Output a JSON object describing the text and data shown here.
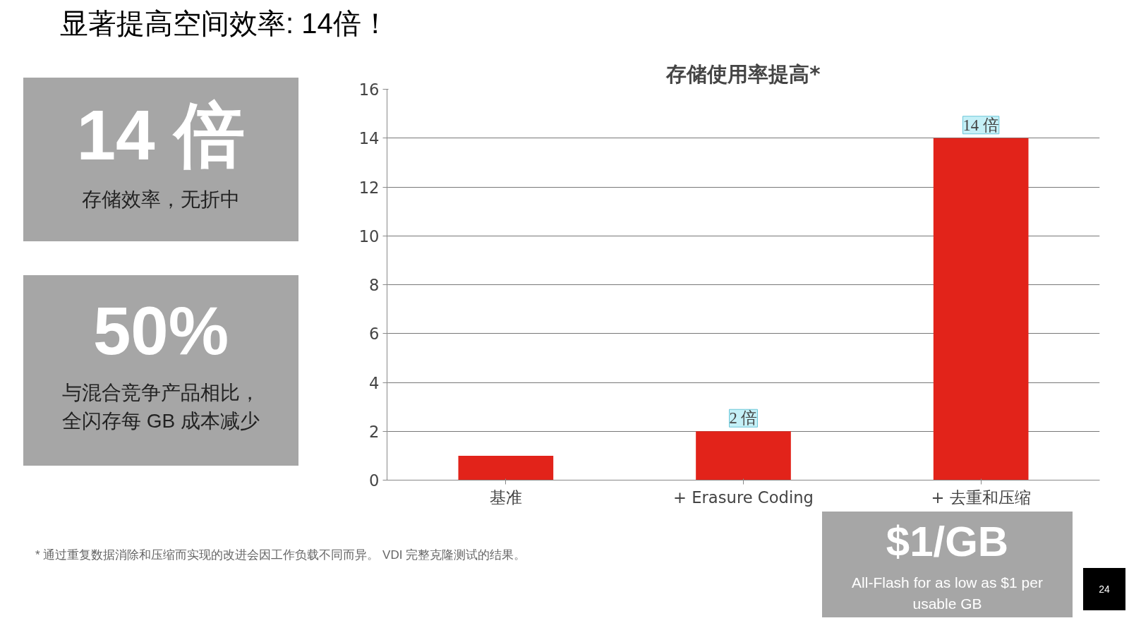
{
  "chart_data": {
    "type": "bar",
    "title": "存储使用率提高*",
    "categories": [
      "基准",
      "+ Erasure Coding",
      "+ 去重和压缩"
    ],
    "values": [
      1,
      2,
      14
    ],
    "color": "#e2231a",
    "value_labels": [
      null,
      "2 倍",
      "14 倍"
    ],
    "ylim": [
      0,
      16
    ],
    "yticks": [
      0,
      2,
      4,
      6,
      8,
      10,
      12,
      14,
      16
    ],
    "grid": "y",
    "annotations": [
      "显著提高空间效率: 14倍！",
      "14 倍",
      "存储效率，无折中",
      "50%",
      "与混合竞争产品相比，",
      "全闪存每  GB 成本减少",
      "$1/GB",
      "All-Flash for as low as $1 per usable GB",
      "* 通过重复数据消除和压缩而实现的改进会因工作负载不同而异。 VDI 完整克隆测试的结果。",
      "24"
    ]
  }
}
